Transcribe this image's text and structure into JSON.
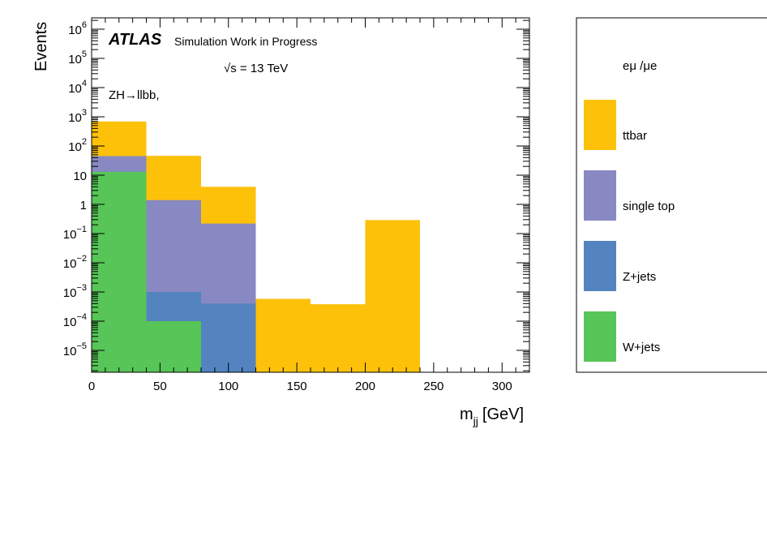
{
  "chart_data": {
    "type": "bar",
    "stacked": true,
    "log_y": true,
    "title": "",
    "xlabel": "m",
    "xlabel_sub": "jj",
    "xlabel_unit": "[GeV]",
    "ylabel": "Events",
    "xlim": [
      0,
      320
    ],
    "ylim": [
      1.5e-06,
      2000000.0
    ],
    "x_ticks": [
      0,
      50,
      100,
      150,
      200,
      250,
      300
    ],
    "x_tick_labels": [
      "0",
      "50",
      "100",
      "150",
      "200",
      "250",
      "300"
    ],
    "y_ticks": [
      {
        "v": 1000000.0,
        "base": "10",
        "exp": "6"
      },
      {
        "v": 100000.0,
        "base": "10",
        "exp": "5"
      },
      {
        "v": 10000.0,
        "base": "10",
        "exp": "4"
      },
      {
        "v": 1000.0,
        "base": "10",
        "exp": "3"
      },
      {
        "v": 100.0,
        "base": "10",
        "exp": "2"
      },
      {
        "v": 10,
        "base": "10",
        "exp": ""
      },
      {
        "v": 1,
        "base": "1",
        "exp": ""
      },
      {
        "v": 0.1,
        "base": "10",
        "exp": "−1"
      },
      {
        "v": 0.01,
        "base": "10",
        "exp": "−2"
      },
      {
        "v": 0.001,
        "base": "10",
        "exp": "−3"
      },
      {
        "v": 0.0001,
        "base": "10",
        "exp": "−4"
      },
      {
        "v": 1e-05,
        "base": "10",
        "exp": "−5"
      }
    ],
    "bin_edges": [
      0,
      40,
      80,
      120,
      160,
      200,
      240,
      280,
      320
    ],
    "series": [
      {
        "name": "W+jets",
        "color": "#57c557",
        "values": [
          13,
          0.0001,
          0,
          0,
          0,
          0,
          0,
          0
        ]
      },
      {
        "name": "Z+jets",
        "color": "#5384c0",
        "values": [
          0,
          0.0009,
          0.0004,
          0,
          0,
          0,
          0,
          0
        ]
      },
      {
        "name": "single top",
        "color": "#8889c2",
        "values": [
          32,
          1.4,
          0.22,
          0,
          0,
          0,
          0,
          0
        ]
      },
      {
        "name": "ttbar",
        "color": "#fdc10a",
        "values": [
          645,
          46,
          3.8,
          0.00058,
          0.00038,
          0.29,
          0,
          0
        ]
      }
    ],
    "cumulative_tops": [
      [
        13,
        0.0001,
        0,
        0,
        0,
        0,
        0,
        0
      ],
      [
        13,
        0.001,
        0.0004,
        0,
        0,
        0,
        0,
        0
      ],
      [
        45,
        1.4,
        0.22,
        0,
        0,
        0,
        0,
        0
      ],
      [
        690,
        46,
        4,
        0.00058,
        0.00038,
        0.29,
        0,
        0
      ]
    ],
    "annotations": {
      "atlas": "ATLAS",
      "status": "Simulation Work in Progress",
      "energy": "√s = 13 TeV",
      "process": "ZH→llbb,"
    },
    "legend": {
      "header": "eμ /μe",
      "placement": "right-outside",
      "entries": [
        "ttbar",
        "single top",
        "Z+jets",
        "W+jets"
      ]
    }
  }
}
